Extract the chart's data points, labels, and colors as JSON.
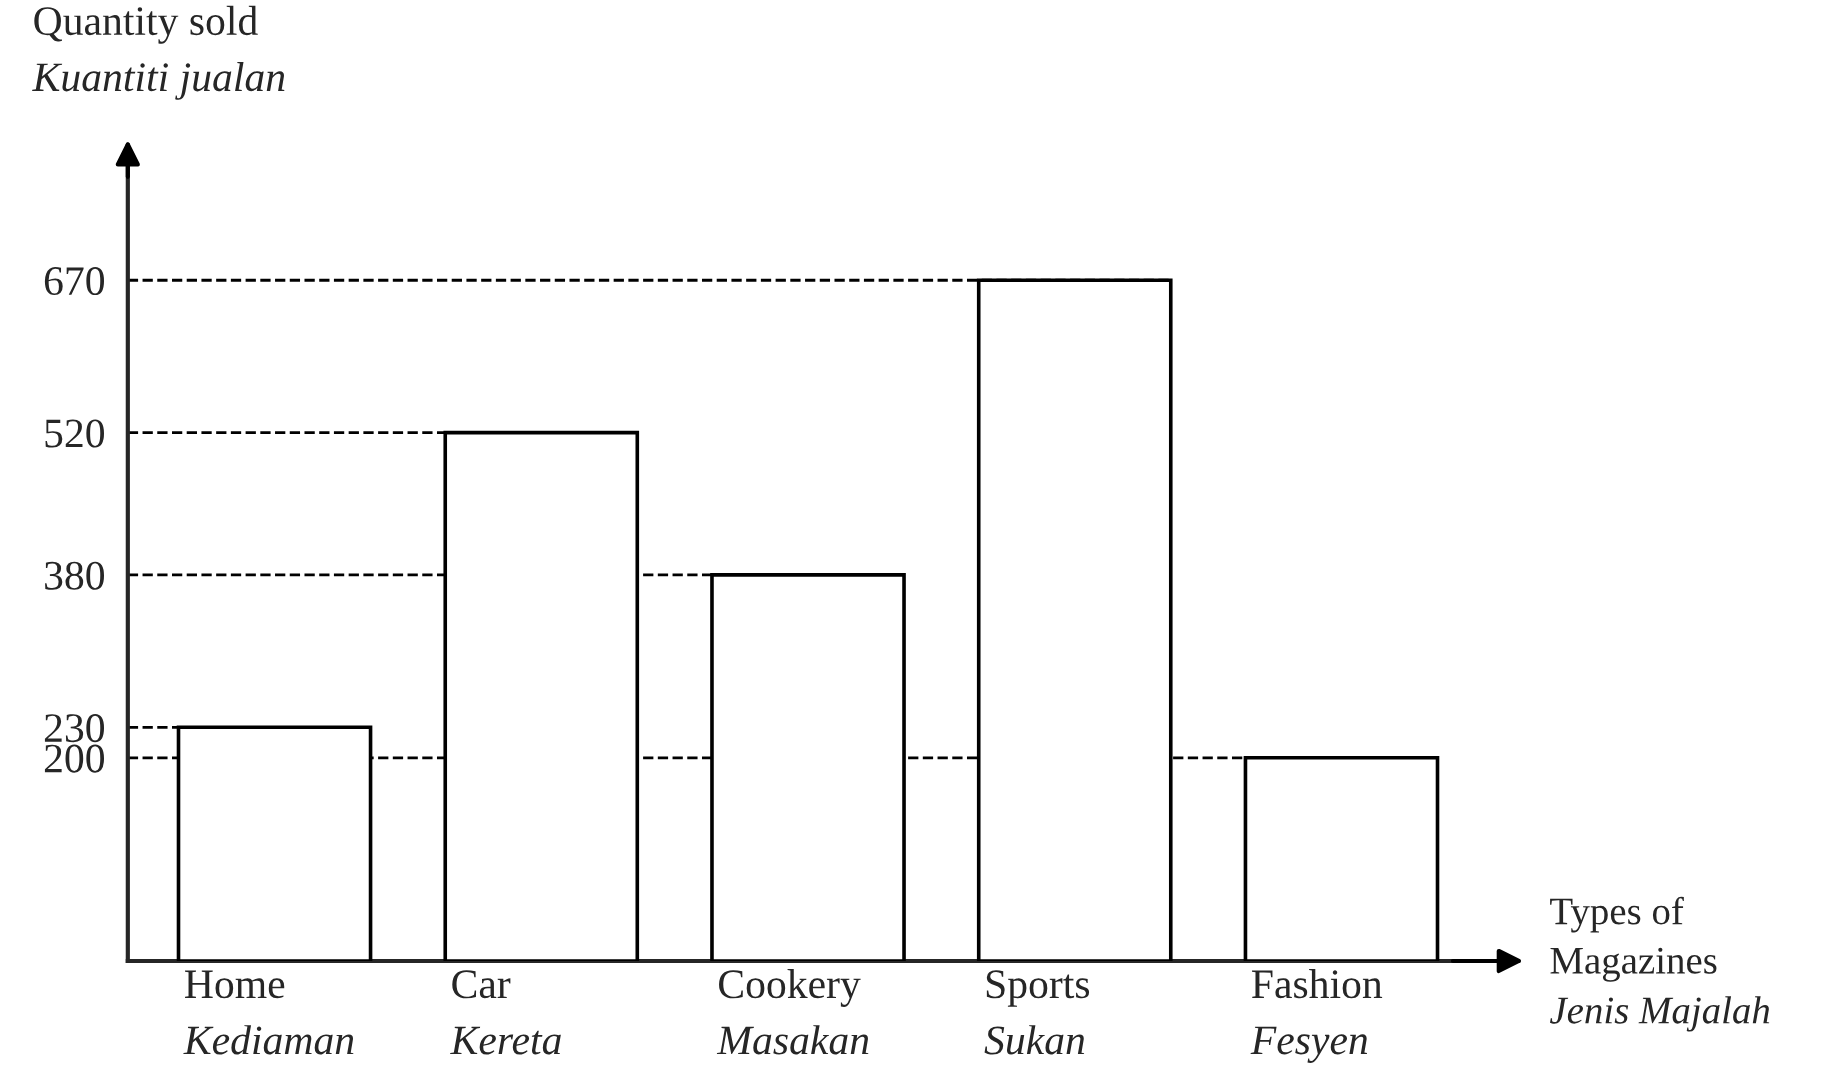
{
  "chart_data": {
    "type": "bar",
    "ylabel": "Quantity sold\nKuantiti jualan",
    "xlabel": "Types of\nMagazines\nJenis Majalah",
    "categories": [
      "Home\nKediaman",
      "Car\nKereta",
      "Cookery\nMasakan",
      "Sports\nSukan",
      "Fashion\nFesyen"
    ],
    "values": [
      230,
      520,
      380,
      670,
      200
    ],
    "color": "#ffffff",
    "ylim": [
      0,
      790
    ],
    "yticks": [
      200,
      230,
      380,
      520,
      670
    ],
    "grid": false,
    "ref_lines": [
      {
        "axis": "y",
        "value": 670,
        "line_style": "dashed"
      },
      {
        "axis": "y",
        "value": 520,
        "line_style": "dashed"
      },
      {
        "axis": "y",
        "value": 380,
        "line_style": "dashed"
      },
      {
        "axis": "y",
        "value": 230,
        "line_style": "dashed"
      },
      {
        "axis": "y",
        "value": 200,
        "line_style": "dashed"
      }
    ]
  }
}
